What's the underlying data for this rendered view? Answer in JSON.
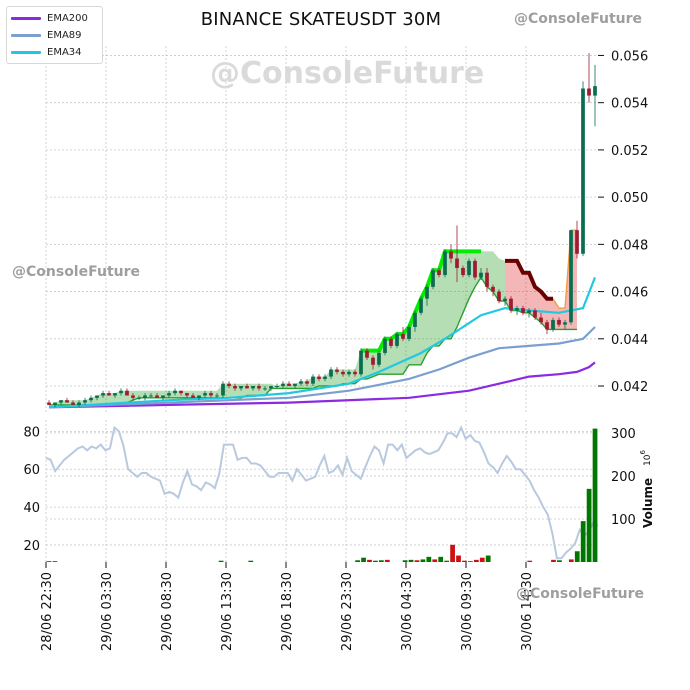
{
  "title": "BINANCE SKATEUSDT 30M",
  "watermarks": {
    "top": "@ConsoleFuture",
    "big": "@ConsoleFuture",
    "mid": "@ConsoleFuture",
    "bottom": "@ConsoleFuture"
  },
  "legend": [
    {
      "label": "EMA200",
      "color": "#8a2be2"
    },
    {
      "label": "EMA89",
      "color": "#7b9fcf"
    },
    {
      "label": "EMA34",
      "color": "#22c8e0"
    }
  ],
  "colors": {
    "up": "#0b6d4f",
    "down": "#9e1b32",
    "volume_up": "#007700",
    "volume_down": "#cc1111",
    "rsi": "#b8c9e0",
    "cloud_green": "#2ca02c",
    "cloud_red": "#e03030",
    "orange": "#f0a040",
    "lime": "#00ee00",
    "dark_red": "#6b0000"
  },
  "chart_data": [
    {
      "type": "candlestick",
      "title": "BINANCE SKATEUSDT 30M",
      "y_ticks": [
        "0.042",
        "0.044",
        "0.046",
        "0.048",
        "0.050",
        "0.052",
        "0.054",
        "0.056"
      ],
      "ylim": [
        0.0409,
        0.0564
      ],
      "x_ticks": [
        "28/06 22:30",
        "29/06 03:30",
        "29/06 08:30",
        "29/06 13:30",
        "29/06 18:30",
        "29/06 23:30",
        "30/06 04:30",
        "30/06 09:30",
        "30/06 14:30"
      ],
      "grid": true,
      "legend_position": "top-left",
      "ema_series": [
        {
          "name": "EMA200",
          "points": [
            [
              0,
              0.0411
            ],
            [
              20,
              0.0412
            ],
            [
              40,
              0.0413
            ],
            [
              60,
              0.0415
            ],
            [
              70,
              0.0418
            ],
            [
              75,
              0.0421
            ],
            [
              80,
              0.0424
            ],
            [
              85,
              0.0425
            ],
            [
              88,
              0.0426
            ],
            [
              90,
              0.0428
            ],
            [
              91,
              0.043
            ]
          ]
        },
        {
          "name": "EMA89",
          "points": [
            [
              0,
              0.0411
            ],
            [
              20,
              0.0413
            ],
            [
              30,
              0.0414
            ],
            [
              40,
              0.0415
            ],
            [
              50,
              0.0418
            ],
            [
              60,
              0.0423
            ],
            [
              65,
              0.0427
            ],
            [
              70,
              0.0432
            ],
            [
              75,
              0.0436
            ],
            [
              80,
              0.0437
            ],
            [
              85,
              0.0438
            ],
            [
              89,
              0.044
            ],
            [
              91,
              0.0445
            ]
          ]
        },
        {
          "name": "EMA34",
          "points": [
            [
              0,
              0.0411
            ],
            [
              20,
              0.0414
            ],
            [
              30,
              0.0415
            ],
            [
              40,
              0.0417
            ],
            [
              50,
              0.0421
            ],
            [
              55,
              0.0426
            ],
            [
              62,
              0.0434
            ],
            [
              66,
              0.044
            ],
            [
              72,
              0.045
            ],
            [
              76,
              0.0453
            ],
            [
              80,
              0.0452
            ],
            [
              85,
              0.0451
            ],
            [
              89,
              0.0453
            ],
            [
              91,
              0.0466
            ]
          ]
        }
      ],
      "candles": [
        [
          0.0413,
          0.0414,
          0.0412,
          0.0412
        ],
        [
          0.0412,
          0.0413,
          0.0411,
          0.0413
        ],
        [
          0.0413,
          0.0414,
          0.0412,
          0.0414
        ],
        [
          0.0414,
          0.0415,
          0.0413,
          0.0413
        ],
        [
          0.0413,
          0.0414,
          0.0412,
          0.0412
        ],
        [
          0.0412,
          0.0414,
          0.0411,
          0.0413
        ],
        [
          0.0413,
          0.0415,
          0.0412,
          0.0414
        ],
        [
          0.0414,
          0.0416,
          0.0413,
          0.0415
        ],
        [
          0.0415,
          0.0416,
          0.0414,
          0.0416
        ],
        [
          0.0416,
          0.0418,
          0.0415,
          0.0417
        ],
        [
          0.0417,
          0.0418,
          0.0416,
          0.0416
        ],
        [
          0.0416,
          0.0417,
          0.0415,
          0.0417
        ],
        [
          0.0417,
          0.0419,
          0.0416,
          0.0418
        ],
        [
          0.0418,
          0.0419,
          0.0416,
          0.0416
        ],
        [
          0.0416,
          0.0417,
          0.0414,
          0.0415
        ],
        [
          0.0415,
          0.0416,
          0.0414,
          0.0415
        ],
        [
          0.0415,
          0.0417,
          0.0414,
          0.0416
        ],
        [
          0.0416,
          0.0417,
          0.0415,
          0.0416
        ],
        [
          0.0416,
          0.0417,
          0.0415,
          0.0415
        ],
        [
          0.0415,
          0.0416,
          0.0414,
          0.0416
        ],
        [
          0.0416,
          0.0418,
          0.0415,
          0.0417
        ],
        [
          0.0417,
          0.0419,
          0.0416,
          0.0418
        ],
        [
          0.0418,
          0.0418,
          0.0416,
          0.0417
        ],
        [
          0.0417,
          0.0417,
          0.0415,
          0.0416
        ],
        [
          0.0416,
          0.0417,
          0.0415,
          0.0415
        ],
        [
          0.0415,
          0.0416,
          0.0414,
          0.0416
        ],
        [
          0.0416,
          0.0418,
          0.0415,
          0.0417
        ],
        [
          0.0417,
          0.0418,
          0.0415,
          0.0416
        ],
        [
          0.0416,
          0.0417,
          0.0415,
          0.0416
        ],
        [
          0.0416,
          0.0422,
          0.0415,
          0.0421
        ],
        [
          0.0421,
          0.0422,
          0.0419,
          0.042
        ],
        [
          0.042,
          0.0421,
          0.0418,
          0.0419
        ],
        [
          0.0419,
          0.042,
          0.0418,
          0.042
        ],
        [
          0.042,
          0.0421,
          0.0419,
          0.0419
        ],
        [
          0.0419,
          0.042,
          0.0418,
          0.042
        ],
        [
          0.042,
          0.0421,
          0.0418,
          0.0419
        ],
        [
          0.0419,
          0.042,
          0.0418,
          0.0419
        ],
        [
          0.0419,
          0.042,
          0.0418,
          0.042
        ],
        [
          0.042,
          0.0421,
          0.0419,
          0.042
        ],
        [
          0.042,
          0.0422,
          0.0419,
          0.0421
        ],
        [
          0.0421,
          0.0422,
          0.042,
          0.042
        ],
        [
          0.042,
          0.0421,
          0.0419,
          0.0421
        ],
        [
          0.0421,
          0.0423,
          0.042,
          0.0422
        ],
        [
          0.0422,
          0.0423,
          0.042,
          0.0421
        ],
        [
          0.0421,
          0.0425,
          0.042,
          0.0424
        ],
        [
          0.0424,
          0.0425,
          0.0422,
          0.0423
        ],
        [
          0.0423,
          0.0425,
          0.0422,
          0.0424
        ],
        [
          0.0424,
          0.0428,
          0.0423,
          0.0427
        ],
        [
          0.0427,
          0.0428,
          0.0425,
          0.0426
        ],
        [
          0.0426,
          0.0427,
          0.0424,
          0.0425
        ],
        [
          0.0425,
          0.0427,
          0.0424,
          0.0426
        ],
        [
          0.0426,
          0.0427,
          0.0424,
          0.0425
        ],
        [
          0.0425,
          0.0436,
          0.0424,
          0.0435
        ],
        [
          0.0435,
          0.0436,
          0.0431,
          0.0432
        ],
        [
          0.0432,
          0.0433,
          0.0427,
          0.0429
        ],
        [
          0.0429,
          0.0435,
          0.0428,
          0.0434
        ],
        [
          0.0434,
          0.0441,
          0.0433,
          0.044
        ],
        [
          0.044,
          0.0441,
          0.0436,
          0.0437
        ],
        [
          0.0437,
          0.0443,
          0.0436,
          0.0442
        ],
        [
          0.0442,
          0.0445,
          0.0439,
          0.044
        ],
        [
          0.044,
          0.0446,
          0.0439,
          0.0445
        ],
        [
          0.0445,
          0.0452,
          0.0443,
          0.0451
        ],
        [
          0.0451,
          0.0458,
          0.045,
          0.0457
        ],
        [
          0.0457,
          0.0463,
          0.0454,
          0.0462
        ],
        [
          0.0462,
          0.047,
          0.0461,
          0.0469
        ],
        [
          0.0469,
          0.047,
          0.0466,
          0.0467
        ],
        [
          0.0467,
          0.0478,
          0.0466,
          0.0477
        ],
        [
          0.0477,
          0.048,
          0.0472,
          0.0474
        ],
        [
          0.0474,
          0.0488,
          0.0464,
          0.047
        ],
        [
          0.047,
          0.0471,
          0.0466,
          0.0467
        ],
        [
          0.0467,
          0.0474,
          0.0466,
          0.0473
        ],
        [
          0.0473,
          0.0474,
          0.0465,
          0.0466
        ],
        [
          0.0466,
          0.047,
          0.0465,
          0.0468
        ],
        [
          0.0468,
          0.047,
          0.046,
          0.0462
        ],
        [
          0.0462,
          0.0463,
          0.0458,
          0.046
        ],
        [
          0.046,
          0.0461,
          0.0455,
          0.0456
        ],
        [
          0.0456,
          0.0458,
          0.0454,
          0.0457
        ],
        [
          0.0457,
          0.0458,
          0.0451,
          0.0452
        ],
        [
          0.0452,
          0.0454,
          0.045,
          0.0453
        ],
        [
          0.0453,
          0.0454,
          0.045,
          0.0451
        ],
        [
          0.0451,
          0.0453,
          0.0449,
          0.0452
        ],
        [
          0.0452,
          0.0453,
          0.0448,
          0.0449
        ],
        [
          0.0449,
          0.0451,
          0.0446,
          0.0447
        ],
        [
          0.0447,
          0.0448,
          0.0442,
          0.0444
        ],
        [
          0.0444,
          0.0449,
          0.0443,
          0.0448
        ],
        [
          0.0448,
          0.0449,
          0.0445,
          0.0446
        ],
        [
          0.0446,
          0.0448,
          0.0444,
          0.0447
        ],
        [
          0.0447,
          0.0486,
          0.0446,
          0.0486
        ],
        [
          0.0486,
          0.049,
          0.0474,
          0.0476
        ],
        [
          0.0476,
          0.0549,
          0.0475,
          0.0546
        ],
        [
          0.0546,
          0.0561,
          0.054,
          0.0543
        ],
        [
          0.0543,
          0.0556,
          0.053,
          0.0547
        ]
      ]
    },
    {
      "type": "line",
      "y_ticks": [
        "20",
        "40",
        "60",
        "80"
      ],
      "ylim": [
        11,
        86
      ],
      "values": [
        66,
        65,
        59,
        62,
        65,
        67,
        69,
        71,
        72,
        70,
        72,
        71,
        73,
        70,
        71,
        82,
        80,
        72,
        60,
        58,
        56,
        58,
        58,
        56,
        55,
        54,
        47,
        48,
        47,
        45,
        53,
        59,
        52,
        51,
        49,
        53,
        52,
        50,
        58,
        73,
        73,
        73,
        65,
        66,
        66,
        63,
        63,
        62,
        59,
        56,
        56,
        58,
        58,
        58,
        54,
        60,
        57,
        54,
        55,
        56,
        62,
        67,
        58,
        59,
        62,
        57,
        66,
        59,
        57,
        55,
        61,
        67,
        72,
        70,
        63,
        73,
        73,
        70,
        73,
        66,
        68,
        70,
        71,
        69,
        68,
        69,
        70,
        74,
        79,
        79,
        77,
        82,
        76,
        78,
        75,
        74,
        69,
        63,
        61,
        58,
        63,
        67,
        64,
        60,
        60,
        57,
        54,
        49,
        45,
        40,
        36,
        26,
        13,
        13,
        16,
        18,
        21,
        28,
        25,
        27,
        32,
        30
      ]
    },
    {
      "type": "bar",
      "ylabel": "Volume",
      "unit": "10^6",
      "y_ticks": [
        "100",
        "200",
        "300"
      ],
      "ylim": [
        0,
        330
      ],
      "values": [
        2,
        2,
        0,
        0,
        0,
        0,
        0,
        0,
        0,
        0,
        0,
        0,
        0,
        0,
        0,
        0,
        0,
        0,
        0,
        0,
        0,
        0,
        0,
        0,
        0,
        0,
        0,
        0,
        0,
        3,
        0,
        0,
        0,
        0,
        3,
        0,
        0,
        0,
        0,
        0,
        0,
        0,
        0,
        0,
        0,
        0,
        0,
        0,
        0,
        0,
        0,
        0,
        4,
        10,
        5,
        3,
        4,
        5,
        0,
        0,
        4,
        5,
        4,
        6,
        12,
        6,
        12,
        3,
        40,
        15,
        3,
        2,
        5,
        10,
        15,
        0,
        0,
        0,
        0,
        0,
        0,
        3,
        0,
        0,
        0,
        5,
        4,
        0,
        6,
        25,
        95,
        170,
        310
      ],
      "up_down": [
        0,
        0,
        0,
        0,
        0,
        0,
        0,
        0,
        0,
        0,
        0,
        0,
        0,
        0,
        0,
        0,
        0,
        0,
        0,
        0,
        0,
        0,
        0,
        0,
        0,
        0,
        0,
        0,
        0,
        1,
        0,
        0,
        0,
        0,
        1,
        0,
        0,
        0,
        0,
        0,
        0,
        0,
        0,
        0,
        0,
        0,
        0,
        0,
        0,
        0,
        0,
        0,
        1,
        1,
        0,
        1,
        1,
        0,
        0,
        0,
        1,
        1,
        0,
        1,
        1,
        0,
        1,
        1,
        0,
        0,
        0,
        0,
        0,
        0,
        1,
        0,
        0,
        0,
        0,
        0,
        0,
        0,
        0,
        0,
        0,
        0,
        1,
        0,
        0,
        1,
        1,
        1,
        1
      ]
    }
  ]
}
